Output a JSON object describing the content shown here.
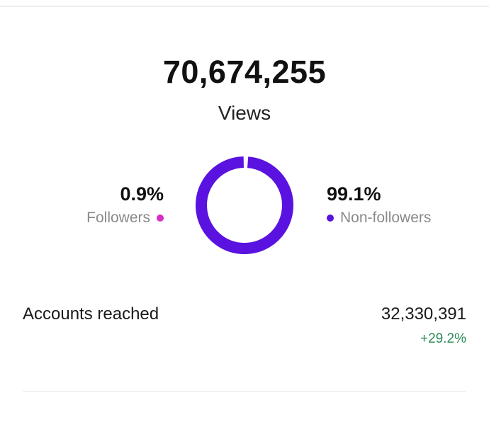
{
  "summary": {
    "total": "70,674,255",
    "label": "Views"
  },
  "breakdown": {
    "followers": {
      "percent": "0.9%",
      "label": "Followers",
      "value": 0.9,
      "color": "#d62fc6"
    },
    "non_followers": {
      "percent": "99.1%",
      "label": "Non-followers",
      "value": 99.1,
      "color": "#5a12e0"
    }
  },
  "metrics": {
    "accounts_reached": {
      "label": "Accounts reached",
      "value": "32,330,391",
      "change": "+29.2%",
      "change_color": "#2e8b57"
    }
  }
}
